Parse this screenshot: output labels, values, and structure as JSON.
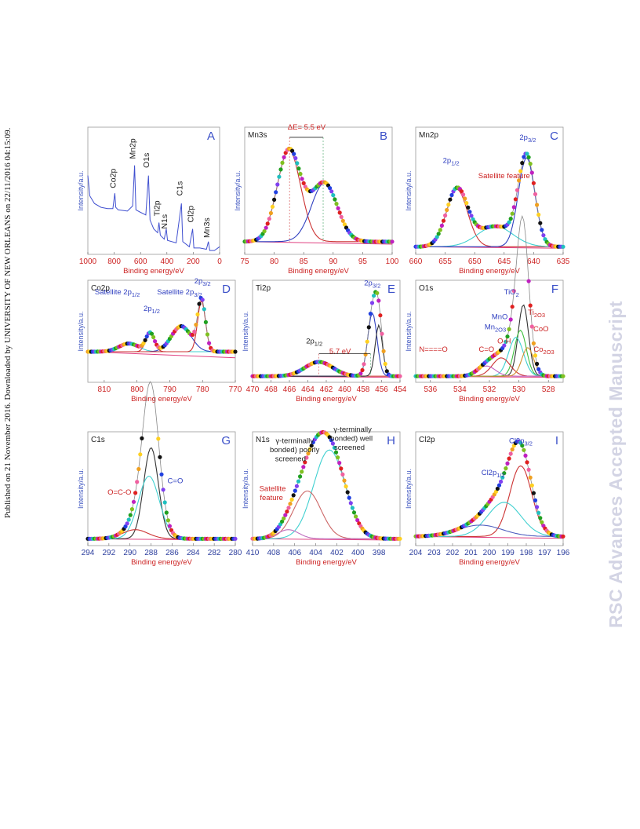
{
  "sidebar_text": "Published on 21 November 2016. Downloaded by UNIVERSITY OF NEW ORLEANS on 22/11/2016 04:15:09.",
  "watermark_text": "RSC Advances Accepted Manuscript",
  "colors": {
    "panel_letter": "#3a4fc8",
    "axis_text": "#2d3f9e",
    "xlabel": "#cc2222",
    "tick_red": "#cc2222",
    "ylabel": "#3f56c0"
  },
  "chart_data": [
    {
      "id": "A",
      "type": "line",
      "panel_label": "A",
      "title": "",
      "xlabel": "Binding energy/eV",
      "ylabel": "Intensity/a.u.",
      "xlim": [
        1000,
        0
      ],
      "xticks": [
        1000,
        800,
        600,
        400,
        200,
        0
      ],
      "tick_color": "red",
      "series": [
        {
          "color": "#4050d0",
          "points": [
            [
              1000,
              0.62
            ],
            [
              985,
              0.46
            ],
            [
              950,
              0.4
            ],
            [
              900,
              0.37
            ],
            [
              850,
              0.36
            ],
            [
              810,
              0.36
            ],
            [
              795,
              0.48
            ],
            [
              788,
              0.37
            ],
            [
              770,
              0.35
            ],
            [
              700,
              0.34
            ],
            [
              660,
              0.38
            ],
            [
              645,
              0.7
            ],
            [
              635,
              0.35
            ],
            [
              600,
              0.33
            ],
            [
              560,
              0.31
            ],
            [
              540,
              0.62
            ],
            [
              528,
              0.27
            ],
            [
              500,
              0.2
            ],
            [
              470,
              0.17
            ],
            [
              460,
              0.25
            ],
            [
              450,
              0.15
            ],
            [
              420,
              0.12
            ],
            [
              405,
              0.2
            ],
            [
              395,
              0.11
            ],
            [
              330,
              0.09
            ],
            [
              290,
              0.4
            ],
            [
              280,
              0.1
            ],
            [
              230,
              0.06
            ],
            [
              205,
              0.2
            ],
            [
              195,
              0.05
            ],
            [
              150,
              0.05
            ],
            [
              100,
              0.04
            ],
            [
              85,
              0.1
            ],
            [
              75,
              0.03
            ],
            [
              40,
              0.03
            ],
            [
              0,
              0.06
            ]
          ]
        }
      ],
      "annotations": [
        {
          "text": "Co2p",
          "x": 790,
          "y": 0.52,
          "rot": -90,
          "color": "#222"
        },
        {
          "text": "Mn2p",
          "x": 640,
          "y": 0.75,
          "rot": -90,
          "color": "#222"
        },
        {
          "text": "O1s",
          "x": 535,
          "y": 0.68,
          "rot": -90,
          "color": "#222"
        },
        {
          "text": "Ti2p",
          "x": 455,
          "y": 0.3,
          "rot": -90,
          "color": "#222"
        },
        {
          "text": "N1s",
          "x": 400,
          "y": 0.2,
          "rot": -90,
          "color": "#222"
        },
        {
          "text": "C1s",
          "x": 283,
          "y": 0.46,
          "rot": -90,
          "color": "#222"
        },
        {
          "text": "Cl2p",
          "x": 198,
          "y": 0.25,
          "rot": -90,
          "color": "#222"
        },
        {
          "text": "Mn3s",
          "x": 78,
          "y": 0.13,
          "rot": -90,
          "color": "#222"
        }
      ]
    },
    {
      "id": "B",
      "type": "scatter-fit",
      "panel_label": "B",
      "title": "Mn3s",
      "xlabel": "Binding energy/eV",
      "ylabel": "Intensity/a.u.",
      "xlim": [
        75,
        100
      ],
      "xticks": [
        75,
        80,
        85,
        90,
        95,
        100
      ],
      "tick_color": "red",
      "baseline": 0.1,
      "peaks": [
        {
          "center": 82.5,
          "height": 0.72,
          "width": 2.0,
          "color": "#cc3333"
        },
        {
          "center": 88.5,
          "height": 0.46,
          "width": 2.2,
          "color": "#3040c0"
        }
      ],
      "annotations": [
        {
          "text": "ΔE= 5.5 eV",
          "x": 85.5,
          "y": 0.98,
          "color": "#cc2222"
        }
      ],
      "arrow": [
        82.6,
        88.3,
        0.92
      ]
    },
    {
      "id": "C",
      "type": "scatter-fit",
      "panel_label": "C",
      "title": "Mn2p",
      "xlabel": "Binding energy/eV",
      "ylabel": "Intensity/a.u.",
      "xlim": [
        660,
        635
      ],
      "xticks": [
        660,
        655,
        650,
        645,
        640,
        635
      ],
      "tick_color": "red",
      "baseline": 0.06,
      "peaks": [
        {
          "center": 653.0,
          "height": 0.45,
          "width": 1.8,
          "color": "#cc3333"
        },
        {
          "center": 646.5,
          "height": 0.16,
          "width": 3.0,
          "color": "#40d0d0"
        },
        {
          "center": 641.2,
          "height": 0.7,
          "width": 1.4,
          "color": "#3040c0"
        }
      ],
      "annotations": [
        {
          "text": "2p",
          "sub": "1/2",
          "x": 654,
          "y": 0.72,
          "color": "#3040c0"
        },
        {
          "text": "Satellite feature",
          "x": 645,
          "y": 0.6,
          "color": "#cc2222"
        },
        {
          "text": "2p",
          "sub": "3/2",
          "x": 641,
          "y": 0.9,
          "color": "#3040c0"
        }
      ]
    },
    {
      "id": "D",
      "type": "scatter-fit",
      "panel_label": "D",
      "title": "Co2p",
      "xlabel": "Binding energy/eV",
      "ylabel": "Intensity/a.u.",
      "xlim": [
        815,
        770
      ],
      "xticks": [
        810,
        800,
        790,
        780,
        770
      ],
      "tick_color": "red",
      "baseline": 0.3,
      "peaks": [
        {
          "center": 796.0,
          "height": 0.18,
          "width": 1.3,
          "color": "#cc3333"
        },
        {
          "center": 802.5,
          "height": 0.08,
          "width": 3.0,
          "color": "#40d0d0"
        },
        {
          "center": 786.5,
          "height": 0.25,
          "width": 3.0,
          "color": "#3040c0"
        },
        {
          "center": 780.3,
          "height": 0.5,
          "width": 1.2,
          "color": "#cc3333"
        }
      ],
      "annotations": [
        {
          "text": "Satellite 2p",
          "sub": "1/2",
          "x": 806,
          "y": 0.86,
          "color": "#3040c0"
        },
        {
          "text": "2p",
          "sub": "1/2",
          "x": 795.5,
          "y": 0.7,
          "color": "#3040c0"
        },
        {
          "text": "Satellite 2p",
          "sub": "3/2",
          "x": 787,
          "y": 0.86,
          "color": "#3040c0"
        },
        {
          "text": "2p",
          "sub": "3/2",
          "x": 780,
          "y": 0.97,
          "color": "#3040c0"
        }
      ]
    },
    {
      "id": "E",
      "type": "scatter-fit",
      "panel_label": "E",
      "title": "Ti2p",
      "xlabel": "Binding energy/eV",
      "ylabel": "Intensity/a.u.",
      "xlim": [
        470,
        454
      ],
      "xticks": [
        470,
        468,
        466,
        464,
        462,
        460,
        458,
        456,
        454
      ],
      "tick_color": "red",
      "baseline": 0.06,
      "peaks": [
        {
          "center": 462.8,
          "height": 0.14,
          "width": 1.5,
          "color": "#cc3333"
        },
        {
          "center": 457.0,
          "height": 0.62,
          "width": 0.5,
          "color": "#3040c0"
        },
        {
          "center": 456.3,
          "height": 0.5,
          "width": 0.4,
          "color": "#333"
        }
      ],
      "annotations": [
        {
          "text": "2p",
          "sub": "1/2",
          "x": 463.3,
          "y": 0.38,
          "color": "#222"
        },
        {
          "text": "5.7 eV",
          "x": 460.5,
          "y": 0.28,
          "color": "#cc2222"
        },
        {
          "text": "2p",
          "sub": "3/2",
          "x": 457.0,
          "y": 0.95,
          "color": "#3040c0"
        }
      ],
      "arrow": [
        462.8,
        457.2,
        0.28
      ]
    },
    {
      "id": "F",
      "type": "scatter-fit",
      "panel_label": "F",
      "title": "O1s",
      "xlabel": "Binding energy/eV",
      "ylabel": "Intensity/a.u.",
      "xlim": [
        537,
        527
      ],
      "xticks": [
        536,
        534,
        532,
        530,
        528
      ],
      "tick_color": "red",
      "baseline": 0.06,
      "peaks": [
        {
          "center": 529.7,
          "height": 0.7,
          "width": 0.35,
          "color": "#333"
        },
        {
          "center": 529.9,
          "height": 0.45,
          "width": 0.4,
          "color": "#40c040"
        },
        {
          "center": 530.2,
          "height": 0.38,
          "width": 0.5,
          "color": "#40d0d0"
        },
        {
          "center": 531.2,
          "height": 0.18,
          "width": 0.6,
          "color": "#cc3333"
        },
        {
          "center": 532.2,
          "height": 0.1,
          "width": 0.6,
          "color": "#c060c0"
        },
        {
          "center": 529.4,
          "height": 0.28,
          "width": 0.4,
          "color": "#d09030"
        }
      ],
      "annotations": [
        {
          "text": "TiO",
          "sub": "2",
          "x": 530.5,
          "y": 0.86,
          "color": "#3040c0"
        },
        {
          "text": "MnO",
          "x": 531.3,
          "y": 0.62,
          "color": "#3040c0"
        },
        {
          "text": "Mn",
          "sub": "2O3",
          "x": 531.6,
          "y": 0.52,
          "color": "#3040c0"
        },
        {
          "text": "Ti",
          "sub": "2O3",
          "x": 528.8,
          "y": 0.66,
          "color": "#cc2222"
        },
        {
          "text": "CoO",
          "x": 528.5,
          "y": 0.5,
          "color": "#cc2222"
        },
        {
          "text": "O-H",
          "x": 531.0,
          "y": 0.38,
          "color": "#cc2222"
        },
        {
          "text": "C=O",
          "x": 532.2,
          "y": 0.3,
          "color": "#cc2222"
        },
        {
          "text": "N====O",
          "x": 535.8,
          "y": 0.3,
          "color": "#cc2222"
        },
        {
          "text": "Co",
          "sub": "2O3",
          "x": 528.3,
          "y": 0.3,
          "color": "#cc2222"
        }
      ]
    },
    {
      "id": "G",
      "type": "scatter-fit",
      "panel_label": "G",
      "title": "C1s",
      "xlabel": "Binding energy/eV",
      "ylabel": "Intensity/a.u.",
      "xlim": [
        294,
        280
      ],
      "xticks": [
        294,
        292,
        290,
        288,
        286,
        284,
        282,
        280
      ],
      "tick_color": "blue",
      "baseline": 0.06,
      "peaks": [
        {
          "center": 288.0,
          "height": 0.8,
          "width": 0.7,
          "color": "#333"
        },
        {
          "center": 288.2,
          "height": 0.55,
          "width": 1.0,
          "color": "#40d0d0"
        },
        {
          "center": 289.5,
          "height": 0.08,
          "width": 1.2,
          "color": "#cc3333"
        }
      ],
      "annotations": [
        {
          "text": "O=C-O",
          "x": 291.0,
          "y": 0.45,
          "color": "#cc2222"
        },
        {
          "text": "C=O",
          "x": 285.7,
          "y": 0.55,
          "color": "#3040c0"
        }
      ]
    },
    {
      "id": "H",
      "type": "scatter-fit",
      "panel_label": "H",
      "title": "N1s",
      "xlabel": "Binding energy/eV",
      "ylabel": "Intensity/a.u.",
      "xlim": [
        410,
        396
      ],
      "xticks": [
        410,
        408,
        406,
        404,
        402,
        400,
        398
      ],
      "tick_color": "blue",
      "baseline": 0.06,
      "peaks": [
        {
          "center": 402.7,
          "height": 0.78,
          "width": 1.5,
          "color": "#40d0d0"
        },
        {
          "center": 404.8,
          "height": 0.42,
          "width": 1.3,
          "color": "#cc6666"
        },
        {
          "center": 406.6,
          "height": 0.08,
          "width": 1.0,
          "color": "#c070c0"
        }
      ],
      "annotations": [
        {
          "text": "γ-terminally",
          "x": 406.0,
          "y": 0.9,
          "color": "#222"
        },
        {
          "text": "bonded) poorly",
          "x": 406.0,
          "y": 0.82,
          "color": "#222"
        },
        {
          "text": "screened",
          "x": 406.4,
          "y": 0.74,
          "color": "#222"
        },
        {
          "text": "γ-terminally",
          "x": 400.5,
          "y": 1.0,
          "color": "#222"
        },
        {
          "text": "bonded) well",
          "x": 400.6,
          "y": 0.92,
          "color": "#222"
        },
        {
          "text": "screened",
          "x": 400.8,
          "y": 0.84,
          "color": "#222"
        },
        {
          "text": "Satellite",
          "x": 408.1,
          "y": 0.48,
          "color": "#cc2222"
        },
        {
          "text": "feature",
          "x": 408.2,
          "y": 0.4,
          "color": "#cc2222"
        }
      ]
    },
    {
      "id": "I",
      "type": "scatter-fit",
      "panel_label": "I",
      "title": "Cl2p",
      "xlabel": "Binding energy/eV",
      "ylabel": "Intensity/a.u.",
      "xlim": [
        204,
        196
      ],
      "xticks": [
        204,
        203,
        202,
        201,
        200,
        199,
        198,
        197,
        196
      ],
      "tick_color": "blue",
      "baseline": 0.08,
      "peaks": [
        {
          "center": 198.3,
          "height": 0.62,
          "width": 0.6,
          "color": "#cc3333"
        },
        {
          "center": 199.2,
          "height": 0.3,
          "width": 0.9,
          "color": "#40d0d0"
        },
        {
          "center": 200.5,
          "height": 0.1,
          "width": 1.2,
          "color": "#5060c0"
        }
      ],
      "annotations": [
        {
          "text": "Cl2p",
          "sub": "3/2",
          "x": 198.3,
          "y": 0.9,
          "color": "#3040c0"
        },
        {
          "text": "Cl2p",
          "sub": "1/2",
          "x": 199.8,
          "y": 0.62,
          "color": "#3040c0"
        }
      ]
    }
  ]
}
